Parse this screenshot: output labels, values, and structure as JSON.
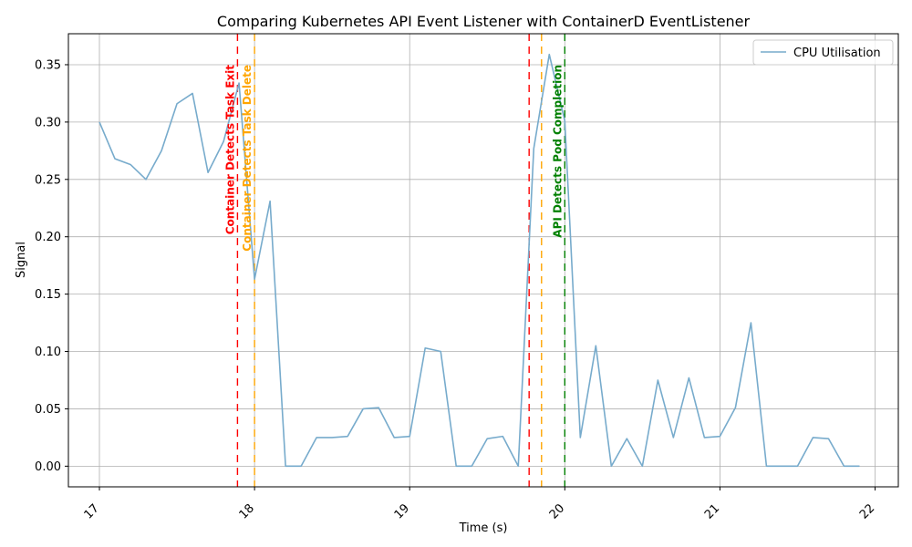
{
  "chart_data": {
    "type": "line",
    "title": "Comparing Kubernetes API Event Listener with ContainerD EventListener",
    "xlabel": "Time (s)",
    "ylabel": "Signal",
    "xlim": [
      16.8,
      22.15
    ],
    "ylim": [
      -0.018,
      0.377
    ],
    "x_ticks": [
      17,
      18,
      19,
      20,
      21,
      22
    ],
    "x_tick_labels": [
      "17",
      "18",
      "19",
      "20",
      "21",
      "22"
    ],
    "y_ticks": [
      0.0,
      0.05,
      0.1,
      0.15,
      0.2,
      0.25,
      0.3,
      0.35
    ],
    "y_tick_labels": [
      "0.00",
      "0.05",
      "0.10",
      "0.15",
      "0.20",
      "0.25",
      "0.30",
      "0.35"
    ],
    "grid": true,
    "legend": "top-right",
    "series": [
      {
        "name": "CPU Utilisation",
        "color": "#77abcc",
        "x": [
          17.0,
          17.1,
          17.2,
          17.3,
          17.4,
          17.5,
          17.6,
          17.7,
          17.8,
          17.9,
          18.0,
          18.1,
          18.2,
          18.3,
          18.4,
          18.5,
          18.6,
          18.7,
          18.8,
          18.9,
          19.0,
          19.1,
          19.2,
          19.3,
          19.4,
          19.5,
          19.6,
          19.7,
          19.8,
          19.9,
          20.0,
          20.1,
          20.2,
          20.3,
          20.4,
          20.5,
          20.6,
          20.7,
          20.8,
          20.9,
          21.0,
          21.1,
          21.2,
          21.3,
          21.4,
          21.5,
          21.6,
          21.7,
          21.8,
          21.9
        ],
        "values": [
          0.3,
          0.268,
          0.263,
          0.25,
          0.275,
          0.316,
          0.325,
          0.256,
          0.283,
          0.334,
          0.163,
          0.231,
          0.0,
          0.0,
          0.025,
          0.025,
          0.026,
          0.05,
          0.051,
          0.025,
          0.026,
          0.103,
          0.1,
          0.0,
          0.0,
          0.024,
          0.026,
          0.0,
          0.277,
          0.359,
          0.301,
          0.025,
          0.105,
          0.0,
          0.024,
          0.0,
          0.075,
          0.025,
          0.077,
          0.025,
          0.026,
          0.051,
          0.125,
          0.0,
          0.0,
          0.0,
          0.025,
          0.024,
          0.0,
          0.0
        ]
      }
    ],
    "events": [
      {
        "x": 17.89,
        "label": "Container Detects Task Exit",
        "color": "#ff0000"
      },
      {
        "x": 18.0,
        "label": "Container Detects Task Delete",
        "color": "#ffa500"
      },
      {
        "x": 19.77,
        "label": "",
        "color": "#ff0000"
      },
      {
        "x": 19.85,
        "label": "",
        "color": "#ffa500"
      },
      {
        "x": 20.0,
        "label": "API Detects Pod Completion",
        "color": "#008000"
      }
    ]
  }
}
